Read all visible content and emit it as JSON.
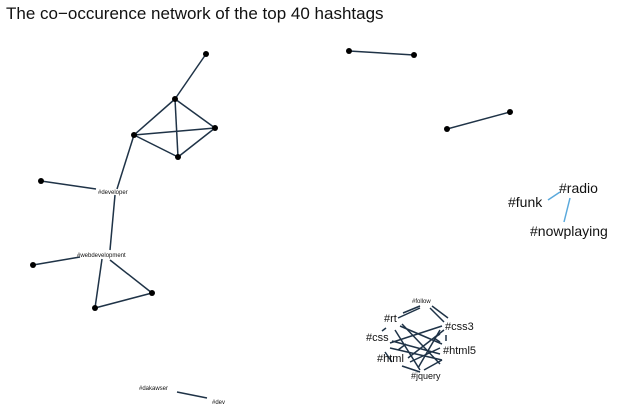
{
  "title": "The co−occurence network of the top 40 hashtags",
  "colors": {
    "edge_dark": "#1f3347",
    "edge_light": "#5aa9dc",
    "node": "#000000",
    "background": "#ffffff"
  },
  "labels": {
    "developer": "#developer",
    "webdevelopment": "#webdevelopment",
    "funk": "#funk",
    "radio": "#radio",
    "nowplaying": "#nowplaying",
    "follow": "#follow",
    "rt": "#rt",
    "css3": "#css3",
    "css": "#css",
    "html5": "#html5",
    "html": "#html",
    "jquery": "#jquery",
    "dakawser": "#dakawser",
    "dev": "#dev"
  }
}
